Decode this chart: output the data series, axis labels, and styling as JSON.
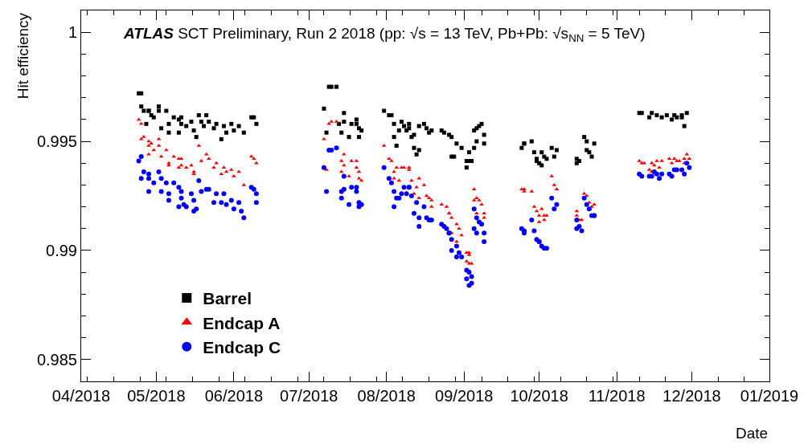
{
  "chart_data": {
    "type": "scatter",
    "title": "ATLAS SCT Preliminary, Run 2 2018 (pp: √s = 13 TeV, Pb+Pb: √s$_{NN}$ = 5 TeV)",
    "xlabel": "Date",
    "ylabel": "Hit efficiency",
    "xlim": [
      "2018-04-01",
      "2019-01-01"
    ],
    "xticks": [
      {
        "value": "2018-04-01",
        "label": "04/2018"
      },
      {
        "value": "2018-05-01",
        "label": "05/2018"
      },
      {
        "value": "2018-06-01",
        "label": "06/2018"
      },
      {
        "value": "2018-07-01",
        "label": "07/2018"
      },
      {
        "value": "2018-08-01",
        "label": "08/2018"
      },
      {
        "value": "2018-09-01",
        "label": "09/2018"
      },
      {
        "value": "2018-10-01",
        "label": "10/2018"
      },
      {
        "value": "2018-11-01",
        "label": "11/2018"
      },
      {
        "value": "2018-12-01",
        "label": "12/2018"
      },
      {
        "value": "2019-01-01",
        "label": "01/2019"
      }
    ],
    "ylim": [
      0.984,
      1.001
    ],
    "yticks": [
      0.985,
      0.99,
      0.995,
      {
        "value": 1,
        "label": "1"
      }
    ],
    "legend": "bottom left",
    "series": [
      {
        "name": "Barrel",
        "color": "#000000",
        "marker": "square",
        "x": [
          "2018-04-24",
          "2018-04-25",
          "2018-04-25",
          "2018-04-26",
          "2018-04-27",
          "2018-04-28",
          "2018-04-28",
          "2018-04-29",
          "2018-04-30",
          "2018-05-02",
          "2018-05-02",
          "2018-05-03",
          "2018-05-05",
          "2018-05-06",
          "2018-05-06",
          "2018-05-08",
          "2018-05-10",
          "2018-05-10",
          "2018-05-11",
          "2018-05-11",
          "2018-05-13",
          "2018-05-15",
          "2018-05-16",
          "2018-05-17",
          "2018-05-18",
          "2018-05-19",
          "2018-05-20",
          "2018-05-21",
          "2018-05-22",
          "2018-05-24",
          "2018-05-25",
          "2018-05-27",
          "2018-05-28",
          "2018-05-29",
          "2018-05-31",
          "2018-06-01",
          "2018-06-03",
          "2018-06-05",
          "2018-06-08",
          "2018-06-09",
          "2018-06-10",
          "2018-07-07",
          "2018-07-08",
          "2018-07-09",
          "2018-07-10",
          "2018-07-12",
          "2018-07-13",
          "2018-07-14",
          "2018-07-15",
          "2018-07-15",
          "2018-07-17",
          "2018-07-18",
          "2018-07-20",
          "2018-07-20",
          "2018-07-21",
          "2018-07-21",
          "2018-07-22",
          "2018-07-31",
          "2018-08-02",
          "2018-08-03",
          "2018-08-04",
          "2018-08-04",
          "2018-08-05",
          "2018-08-06",
          "2018-08-07",
          "2018-08-08",
          "2018-08-09",
          "2018-08-10",
          "2018-08-10",
          "2018-08-11",
          "2018-08-12",
          "2018-08-12",
          "2018-08-13",
          "2018-08-14",
          "2018-08-14",
          "2018-08-16",
          "2018-08-17",
          "2018-08-18",
          "2018-08-19",
          "2018-08-23",
          "2018-08-24",
          "2018-08-26",
          "2018-08-27",
          "2018-08-27",
          "2018-08-28",
          "2018-08-29",
          "2018-08-31",
          "2018-09-02",
          "2018-09-02",
          "2018-09-03",
          "2018-09-03",
          "2018-09-04",
          "2018-09-05",
          "2018-09-05",
          "2018-09-06",
          "2018-09-06",
          "2018-09-07",
          "2018-09-08",
          "2018-09-09",
          "2018-09-09",
          "2018-09-24",
          "2018-09-25",
          "2018-09-25",
          "2018-09-28",
          "2018-09-29",
          "2018-09-30",
          "2018-09-30",
          "2018-10-01",
          "2018-10-02",
          "2018-10-02",
          "2018-10-03",
          "2018-10-04",
          "2018-10-06",
          "2018-10-07",
          "2018-10-08",
          "2018-10-16",
          "2018-10-16",
          "2018-10-17",
          "2018-10-19",
          "2018-10-20",
          "2018-10-20",
          "2018-10-21",
          "2018-10-22",
          "2018-10-23",
          "2018-11-10",
          "2018-11-11",
          "2018-11-14",
          "2018-11-15",
          "2018-11-17",
          "2018-11-19",
          "2018-11-21",
          "2018-11-23",
          "2018-11-24",
          "2018-11-25",
          "2018-11-27",
          "2018-11-27",
          "2018-11-28",
          "2018-11-29"
        ],
        "values": [
          0.9972,
          0.9972,
          0.9966,
          0.9964,
          0.9958,
          0.9964,
          0.9964,
          0.9962,
          0.9961,
          0.9966,
          0.9964,
          0.9956,
          0.9964,
          0.9954,
          0.9958,
          0.9961,
          0.996,
          0.9954,
          0.9961,
          0.9958,
          0.9957,
          0.9959,
          0.9955,
          0.9952,
          0.9962,
          0.9959,
          0.9957,
          0.9962,
          0.9959,
          0.9956,
          0.9958,
          0.9951,
          0.9957,
          0.9954,
          0.9958,
          0.9955,
          0.9957,
          0.9954,
          0.9961,
          0.9961,
          0.9958,
          0.9965,
          0.9954,
          0.9975,
          0.9975,
          0.9975,
          0.9958,
          0.9954,
          0.9963,
          0.9959,
          0.9952,
          0.9958,
          0.996,
          0.9958,
          0.9952,
          0.9956,
          0.9955,
          0.9964,
          0.9962,
          0.9962,
          0.9952,
          0.9958,
          0.9948,
          0.9955,
          0.9959,
          0.9957,
          0.9955,
          0.9956,
          0.9958,
          0.9952,
          0.9947,
          0.9953,
          0.9944,
          0.9946,
          0.9957,
          0.9958,
          0.9956,
          0.9954,
          0.9955,
          0.9955,
          0.9954,
          0.9953,
          0.9952,
          0.9943,
          0.9943,
          0.9949,
          0.9947,
          0.9941,
          0.9938,
          0.9945,
          0.9941,
          0.9941,
          0.9955,
          0.9947,
          0.995,
          0.9956,
          0.9957,
          0.9958,
          0.9953,
          0.9949,
          0.9947,
          0.9949,
          0.9949,
          0.995,
          0.9945,
          0.9942,
          0.9941,
          0.994,
          0.9945,
          0.9939,
          0.9943,
          0.9942,
          0.9947,
          0.9943,
          0.9946,
          0.9942,
          0.994,
          0.9941,
          0.9952,
          0.995,
          0.9946,
          0.9945,
          0.9943,
          0.9949,
          0.9963,
          0.9963,
          0.9961,
          0.9963,
          0.9962,
          0.9961,
          0.9962,
          0.996,
          0.9962,
          0.9961,
          0.9961,
          0.9962,
          0.9957,
          0.9963
        ]
      },
      {
        "name": "Endcap A",
        "color": "#ff0000",
        "marker": "triangle",
        "x": [
          "2018-04-24",
          "2018-04-25",
          "2018-04-25",
          "2018-04-26",
          "2018-04-28",
          "2018-04-28",
          "2018-04-28",
          "2018-04-29",
          "2018-04-30",
          "2018-05-02",
          "2018-05-02",
          "2018-05-03",
          "2018-05-05",
          "2018-05-06",
          "2018-05-06",
          "2018-05-08",
          "2018-05-10",
          "2018-05-10",
          "2018-05-11",
          "2018-05-11",
          "2018-05-13",
          "2018-05-15",
          "2018-05-16",
          "2018-05-16",
          "2018-05-18",
          "2018-05-19",
          "2018-05-21",
          "2018-05-22",
          "2018-05-24",
          "2018-05-25",
          "2018-05-27",
          "2018-05-28",
          "2018-05-29",
          "2018-05-31",
          "2018-06-01",
          "2018-06-03",
          "2018-06-05",
          "2018-06-08",
          "2018-06-09",
          "2018-06-10",
          "2018-07-07",
          "2018-07-08",
          "2018-07-09",
          "2018-07-10",
          "2018-07-12",
          "2018-07-14",
          "2018-07-14",
          "2018-07-15",
          "2018-07-15",
          "2018-07-17",
          "2018-07-18",
          "2018-07-20",
          "2018-07-20",
          "2018-07-21",
          "2018-07-21",
          "2018-07-22",
          "2018-07-31",
          "2018-08-02",
          "2018-08-03",
          "2018-08-04",
          "2018-08-04",
          "2018-08-05",
          "2018-08-06",
          "2018-08-07",
          "2018-08-08",
          "2018-08-10",
          "2018-08-10",
          "2018-08-11",
          "2018-08-13",
          "2018-08-12",
          "2018-08-14",
          "2018-08-14",
          "2018-08-16",
          "2018-08-17",
          "2018-08-18",
          "2018-08-19",
          "2018-08-19",
          "2018-08-23",
          "2018-08-25",
          "2018-08-26",
          "2018-08-26",
          "2018-08-27",
          "2018-08-27",
          "2018-08-29",
          "2018-08-29",
          "2018-08-30",
          "2018-08-31",
          "2018-09-02",
          "2018-09-02",
          "2018-09-03",
          "2018-09-03",
          "2018-09-03",
          "2018-09-04",
          "2018-09-05",
          "2018-09-05",
          "2018-09-06",
          "2018-09-07",
          "2018-09-08",
          "2018-09-06",
          "2018-09-09",
          "2018-09-09",
          "2018-09-24",
          "2018-09-25",
          "2018-09-25",
          "2018-09-28",
          "2018-09-29",
          "2018-09-30",
          "2018-10-01",
          "2018-10-01",
          "2018-10-02",
          "2018-10-03",
          "2018-10-03",
          "2018-10-04",
          "2018-10-06",
          "2018-10-07",
          "2018-10-08",
          "2018-10-16",
          "2018-10-16",
          "2018-10-17",
          "2018-10-18",
          "2018-10-19",
          "2018-10-20",
          "2018-10-21",
          "2018-10-21",
          "2018-10-22",
          "2018-10-23",
          "2018-11-10",
          "2018-11-11",
          "2018-11-12",
          "2018-11-14",
          "2018-11-15",
          "2018-11-15",
          "2018-11-16",
          "2018-11-17",
          "2018-11-18",
          "2018-11-19",
          "2018-11-22",
          "2018-11-23",
          "2018-11-24",
          "2018-11-25",
          "2018-11-26",
          "2018-11-28",
          "2018-11-28",
          "2018-11-29",
          "2018-11-30"
        ],
        "values": [
          0.996,
          0.9958,
          0.9951,
          0.9952,
          0.9944,
          0.9948,
          0.995,
          0.9949,
          0.9946,
          0.9951,
          0.9948,
          0.9943,
          0.9946,
          0.9939,
          0.994,
          0.9943,
          0.9942,
          0.9938,
          0.9942,
          0.9939,
          0.9938,
          0.9939,
          0.9936,
          0.9935,
          0.9948,
          0.9941,
          0.9944,
          0.9942,
          0.9938,
          0.994,
          0.9935,
          0.9938,
          0.9936,
          0.9937,
          0.9934,
          0.9936,
          0.993,
          0.9943,
          0.9942,
          0.994,
          0.9951,
          0.9937,
          0.9958,
          0.9959,
          0.9959,
          0.9941,
          0.9936,
          0.9944,
          0.9939,
          0.9934,
          0.9941,
          0.9941,
          0.9938,
          0.9936,
          0.9933,
          0.9932,
          0.9948,
          0.9942,
          0.9941,
          0.9936,
          0.9933,
          0.9938,
          0.9932,
          0.9938,
          0.9938,
          0.9937,
          0.9938,
          0.9932,
          0.9929,
          0.9926,
          0.9924,
          0.9933,
          0.993,
          0.9925,
          0.9924,
          0.992,
          0.9923,
          0.9921,
          0.992,
          0.9917,
          0.9917,
          0.9915,
          0.9908,
          0.9904,
          0.9912,
          0.991,
          0.9907,
          0.9899,
          0.9895,
          0.9894,
          0.9898,
          0.9899,
          0.9894,
          0.9928,
          0.9923,
          0.9924,
          0.9923,
          0.9921,
          0.9917,
          0.9917,
          0.9915,
          0.9928,
          0.9927,
          0.9928,
          0.9927,
          0.992,
          0.9918,
          0.9913,
          0.9916,
          0.9919,
          0.9916,
          0.9914,
          0.9916,
          0.9934,
          0.993,
          0.9928,
          0.9918,
          0.9916,
          0.9914,
          0.9914,
          0.9926,
          0.9925,
          0.9922,
          0.9919,
          0.992,
          0.9921,
          0.9941,
          0.994,
          0.994,
          0.9937,
          0.994,
          0.9936,
          0.9939,
          0.9941,
          0.9938,
          0.9941,
          0.9942,
          0.994,
          0.9942,
          0.9941,
          0.9941,
          0.9942,
          0.994,
          0.9944,
          0.9942
        ]
      },
      {
        "name": "Endcap C",
        "color": "#0000ff",
        "marker": "circle",
        "x": [
          "2018-04-24",
          "2018-04-25",
          "2018-04-25",
          "2018-04-26",
          "2018-04-28",
          "2018-04-28",
          "2018-04-28",
          "2018-04-30",
          "2018-05-02",
          "2018-05-03",
          "2018-05-03",
          "2018-05-05",
          "2018-05-06",
          "2018-05-06",
          "2018-05-08",
          "2018-05-10",
          "2018-05-10",
          "2018-05-11",
          "2018-05-11",
          "2018-05-12",
          "2018-05-13",
          "2018-05-15",
          "2018-05-16",
          "2018-05-16",
          "2018-05-17",
          "2018-05-18",
          "2018-05-19",
          "2018-05-21",
          "2018-05-22",
          "2018-05-24",
          "2018-05-25",
          "2018-05-27",
          "2018-05-28",
          "2018-05-29",
          "2018-05-31",
          "2018-06-01",
          "2018-06-03",
          "2018-06-04",
          "2018-06-05",
          "2018-06-08",
          "2018-06-09",
          "2018-06-10",
          "2018-06-10",
          "2018-07-07",
          "2018-07-08",
          "2018-07-09",
          "2018-07-10",
          "2018-07-12",
          "2018-07-14",
          "2018-07-14",
          "2018-07-15",
          "2018-07-15",
          "2018-07-17",
          "2018-07-18",
          "2018-07-20",
          "2018-07-20",
          "2018-07-21",
          "2018-07-21",
          "2018-07-22",
          "2018-07-31",
          "2018-08-02",
          "2018-08-03",
          "2018-08-04",
          "2018-08-04",
          "2018-08-05",
          "2018-08-06",
          "2018-08-07",
          "2018-08-08",
          "2018-08-09",
          "2018-08-10",
          "2018-08-10",
          "2018-08-11",
          "2018-08-12",
          "2018-08-13",
          "2018-08-14",
          "2018-08-14",
          "2018-08-16",
          "2018-08-17",
          "2018-08-18",
          "2018-08-19",
          "2018-08-23",
          "2018-08-24",
          "2018-08-25",
          "2018-08-26",
          "2018-08-26",
          "2018-08-27",
          "2018-08-29",
          "2018-08-27",
          "2018-08-29",
          "2018-08-30",
          "2018-08-31",
          "2018-09-02",
          "2018-09-02",
          "2018-09-03",
          "2018-09-03",
          "2018-09-04",
          "2018-09-04",
          "2018-09-05",
          "2018-09-06",
          "2018-09-05",
          "2018-09-06",
          "2018-09-07",
          "2018-09-08",
          "2018-09-09",
          "2018-09-09",
          "2018-09-24",
          "2018-09-25",
          "2018-09-25",
          "2018-09-28",
          "2018-09-29",
          "2018-09-30",
          "2018-10-01",
          "2018-10-01",
          "2018-10-02",
          "2018-10-03",
          "2018-10-04",
          "2018-10-06",
          "2018-10-07",
          "2018-10-08",
          "2018-10-16",
          "2018-10-16",
          "2018-10-17",
          "2018-10-18",
          "2018-10-19",
          "2018-10-20",
          "2018-10-21",
          "2018-10-22",
          "2018-10-23",
          "2018-10-23",
          "2018-11-10",
          "2018-11-11",
          "2018-11-14",
          "2018-11-15",
          "2018-11-16",
          "2018-11-17",
          "2018-11-18",
          "2018-11-19",
          "2018-11-22",
          "2018-11-23",
          "2018-11-24",
          "2018-11-25",
          "2018-11-27",
          "2018-11-28",
          "2018-11-29",
          "2018-11-30"
        ],
        "values": [
          0.9941,
          0.9943,
          0.9933,
          0.9936,
          0.9927,
          0.9933,
          0.9935,
          0.9931,
          0.9936,
          0.9933,
          0.9927,
          0.9931,
          0.9923,
          0.9926,
          0.9931,
          0.9929,
          0.992,
          0.9927,
          0.9924,
          0.9921,
          0.992,
          0.9926,
          0.9923,
          0.9918,
          0.9919,
          0.9932,
          0.9927,
          0.9928,
          0.9928,
          0.9922,
          0.9926,
          0.9922,
          0.9926,
          0.9921,
          0.9923,
          0.9919,
          0.9922,
          0.9918,
          0.9915,
          0.9929,
          0.9928,
          0.9926,
          0.9922,
          0.9938,
          0.9927,
          0.9946,
          0.9946,
          0.9947,
          0.9927,
          0.9924,
          0.9934,
          0.9928,
          0.9921,
          0.9929,
          0.9929,
          0.9927,
          0.9922,
          0.992,
          0.9921,
          0.9938,
          0.9933,
          0.9931,
          0.992,
          0.9927,
          0.9924,
          0.9924,
          0.9926,
          0.9929,
          0.9926,
          0.9929,
          0.9929,
          0.9925,
          0.9917,
          0.9922,
          0.9911,
          0.9915,
          0.992,
          0.9915,
          0.9914,
          0.9914,
          0.9912,
          0.9911,
          0.991,
          0.9908,
          0.9908,
          0.9905,
          0.9902,
          0.99,
          0.9897,
          0.9899,
          0.9897,
          0.9891,
          0.9887,
          0.989,
          0.9884,
          0.9888,
          0.9885,
          0.9919,
          0.9915,
          0.991,
          0.9908,
          0.9913,
          0.9912,
          0.9908,
          0.9904,
          0.991,
          0.9909,
          0.9908,
          0.9914,
          0.9909,
          0.9905,
          0.9904,
          0.9904,
          0.9902,
          0.9901,
          0.9901,
          0.9924,
          0.9919,
          0.9921,
          0.9914,
          0.991,
          0.9911,
          0.9909,
          0.9924,
          0.9921,
          0.9919,
          0.9916,
          0.9916,
          0.9916,
          0.9935,
          0.9934,
          0.9934,
          0.9934,
          0.9936,
          0.9935,
          0.9933,
          0.9935,
          0.9935,
          0.9934,
          0.9937,
          0.9937,
          0.9937,
          0.9935,
          0.994,
          0.9938
        ]
      }
    ]
  }
}
